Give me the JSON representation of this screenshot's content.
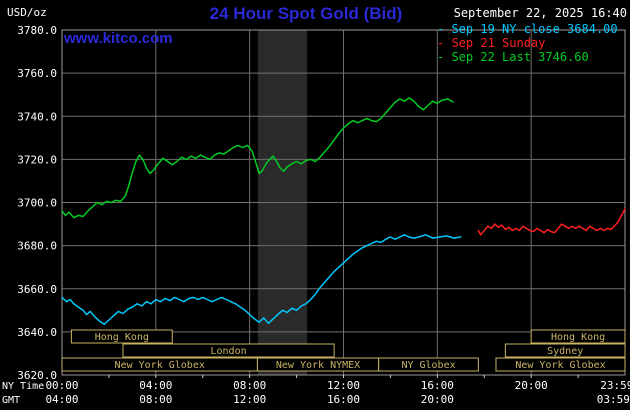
{
  "header": {
    "unit_label": "USD/oz",
    "title": "24 Hour Spot Gold (Bid)",
    "datetime": "September 22, 2025 16:40",
    "watermark": "www.kitco.com"
  },
  "legend": {
    "items": [
      {
        "marker": "-",
        "label": "Sep 19 NY close 3684.00",
        "color": "#00c8ff"
      },
      {
        "marker": "-",
        "label": "Sep 21 Sunday",
        "color": "#ff2020"
      },
      {
        "marker": "-",
        "label": "Sep 22 Last 3746.60",
        "color": "#00cc22"
      }
    ]
  },
  "chart_data": {
    "type": "line",
    "title": "24 Hour Spot Gold (Bid)",
    "ylabel": "USD/oz",
    "ylim": [
      3620,
      3780
    ],
    "x_hours_range": [
      0,
      24
    ],
    "grid": true,
    "grid_color": "#6f6f6f",
    "frame_color": "#9a9a9a",
    "session_color": "#c9b465",
    "y_gridlines": [
      3640,
      3660,
      3680,
      3700,
      3720,
      3740,
      3760
    ],
    "x_gridlines_hours": [
      4,
      8,
      12,
      16,
      20
    ],
    "y_tick_labels": [
      "3780.0",
      "3760.0",
      "3740.0",
      "3720.0",
      "3700.0",
      "3680.0",
      "3660.0",
      "3640.0",
      "3620.0"
    ],
    "x_axis_rows": [
      {
        "name": "NY Time",
        "ticks": [
          {
            "hour": 0,
            "label": "00:00"
          },
          {
            "hour": 4,
            "label": "04:00"
          },
          {
            "hour": 8,
            "label": "08:00"
          },
          {
            "hour": 12,
            "label": "12:00"
          },
          {
            "hour": 16,
            "label": "16:00"
          },
          {
            "hour": 20,
            "label": "20:00"
          },
          {
            "hour": 23.65,
            "label": "23:59"
          }
        ]
      },
      {
        "name": "GMT",
        "ticks": [
          {
            "hour": 0,
            "label": "04:00"
          },
          {
            "hour": 4,
            "label": "08:00"
          },
          {
            "hour": 8,
            "label": "12:00"
          },
          {
            "hour": 12,
            "label": "16:00"
          },
          {
            "hour": 16,
            "label": "20:00"
          },
          {
            "hour": 23.5,
            "label": "03:59"
          }
        ]
      }
    ],
    "shade_band": {
      "from_hour": 8.35,
      "to_hour": 10.45,
      "color": "#2a2a2a"
    },
    "sessions": [
      {
        "row": 0,
        "label": "Hong Kong",
        "from_hour": 0.4,
        "to_hour": 4.7
      },
      {
        "row": 0,
        "label": "Hong Kong",
        "from_hour": 20.0,
        "to_hour": 24.0
      },
      {
        "row": 1,
        "label": "London",
        "from_hour": 2.6,
        "to_hour": 11.6
      },
      {
        "row": 1,
        "label": "Sydney",
        "from_hour": 18.9,
        "to_hour": 24.0
      },
      {
        "row": 2,
        "label": "New York Globex",
        "from_hour": 0.0,
        "to_hour": 8.33
      },
      {
        "row": 2,
        "label": "New York NYMEX",
        "from_hour": 8.33,
        "to_hour": 13.5
      },
      {
        "row": 2,
        "label": "NY Globex",
        "from_hour": 13.5,
        "to_hour": 17.75
      },
      {
        "row": 2,
        "label": "New York Globex",
        "from_hour": 18.5,
        "to_hour": 24.0
      }
    ],
    "series": [
      {
        "key": "sep19",
        "name": "Sep 19 NY close 3684.00",
        "color": "#00c8ff",
        "points": [
          [
            0,
            3656
          ],
          [
            0.2,
            3654
          ],
          [
            0.35,
            3655
          ],
          [
            0.5,
            3653
          ],
          [
            0.7,
            3651.5
          ],
          [
            0.9,
            3650
          ],
          [
            1.05,
            3648
          ],
          [
            1.2,
            3649.5
          ],
          [
            1.4,
            3647
          ],
          [
            1.6,
            3645
          ],
          [
            1.8,
            3643.5
          ],
          [
            2.0,
            3645.5
          ],
          [
            2.2,
            3647.5
          ],
          [
            2.4,
            3649.5
          ],
          [
            2.6,
            3648.5
          ],
          [
            2.8,
            3650.5
          ],
          [
            3.0,
            3651.5
          ],
          [
            3.2,
            3653
          ],
          [
            3.4,
            3652
          ],
          [
            3.6,
            3654
          ],
          [
            3.8,
            3653
          ],
          [
            4.0,
            3655
          ],
          [
            4.2,
            3654
          ],
          [
            4.4,
            3655.5
          ],
          [
            4.6,
            3654.5
          ],
          [
            4.8,
            3656
          ],
          [
            5.0,
            3655
          ],
          [
            5.2,
            3654
          ],
          [
            5.4,
            3655.5
          ],
          [
            5.6,
            3656
          ],
          [
            5.8,
            3655
          ],
          [
            6.0,
            3656
          ],
          [
            6.2,
            3655
          ],
          [
            6.4,
            3654
          ],
          [
            6.6,
            3655
          ],
          [
            6.8,
            3656
          ],
          [
            7.0,
            3655
          ],
          [
            7.2,
            3654
          ],
          [
            7.4,
            3653
          ],
          [
            7.6,
            3651.5
          ],
          [
            7.8,
            3650
          ],
          [
            8.0,
            3648
          ],
          [
            8.2,
            3646
          ],
          [
            8.4,
            3644.5
          ],
          [
            8.6,
            3646.5
          ],
          [
            8.8,
            3644
          ],
          [
            9.0,
            3646
          ],
          [
            9.2,
            3648
          ],
          [
            9.4,
            3650
          ],
          [
            9.6,
            3649
          ],
          [
            9.8,
            3651
          ],
          [
            10.0,
            3650
          ],
          [
            10.2,
            3652
          ],
          [
            10.4,
            3653
          ],
          [
            10.6,
            3655
          ],
          [
            10.8,
            3657.5
          ],
          [
            11.0,
            3660.5
          ],
          [
            11.2,
            3663
          ],
          [
            11.4,
            3665.5
          ],
          [
            11.6,
            3668
          ],
          [
            11.8,
            3670
          ],
          [
            12.0,
            3672
          ],
          [
            12.2,
            3674
          ],
          [
            12.4,
            3676
          ],
          [
            12.6,
            3677.5
          ],
          [
            12.8,
            3679
          ],
          [
            13.0,
            3680
          ],
          [
            13.2,
            3681
          ],
          [
            13.4,
            3682
          ],
          [
            13.6,
            3681.5
          ],
          [
            13.8,
            3683
          ],
          [
            14.0,
            3684
          ],
          [
            14.2,
            3683
          ],
          [
            14.4,
            3684
          ],
          [
            14.6,
            3685
          ],
          [
            14.8,
            3684
          ],
          [
            15.0,
            3683.5
          ],
          [
            15.2,
            3684
          ],
          [
            15.5,
            3685
          ],
          [
            15.8,
            3683.5
          ],
          [
            16.1,
            3684
          ],
          [
            16.4,
            3684.5
          ],
          [
            16.7,
            3683.5
          ],
          [
            17.0,
            3684
          ]
        ]
      },
      {
        "key": "sep21",
        "name": "Sep 21 Sunday",
        "color": "#ff2020",
        "points": [
          [
            17.75,
            3687
          ],
          [
            17.85,
            3685
          ],
          [
            18.0,
            3687
          ],
          [
            18.15,
            3689
          ],
          [
            18.3,
            3688
          ],
          [
            18.45,
            3690
          ],
          [
            18.6,
            3688.5
          ],
          [
            18.75,
            3689.5
          ],
          [
            18.9,
            3687.5
          ],
          [
            19.05,
            3688.5
          ],
          [
            19.2,
            3687
          ],
          [
            19.35,
            3688
          ],
          [
            19.5,
            3687
          ],
          [
            19.65,
            3689
          ],
          [
            19.8,
            3688
          ],
          [
            19.95,
            3687
          ],
          [
            20.1,
            3686.5
          ],
          [
            20.25,
            3688
          ],
          [
            20.4,
            3687
          ],
          [
            20.55,
            3686
          ],
          [
            20.7,
            3687.5
          ],
          [
            20.85,
            3686.5
          ],
          [
            21.0,
            3686
          ],
          [
            21.15,
            3688
          ],
          [
            21.3,
            3690
          ],
          [
            21.45,
            3689
          ],
          [
            21.6,
            3688
          ],
          [
            21.75,
            3689
          ],
          [
            21.9,
            3688
          ],
          [
            22.05,
            3689
          ],
          [
            22.2,
            3688
          ],
          [
            22.35,
            3687
          ],
          [
            22.5,
            3689
          ],
          [
            22.65,
            3688
          ],
          [
            22.8,
            3687
          ],
          [
            22.95,
            3688
          ],
          [
            23.1,
            3687
          ],
          [
            23.25,
            3688
          ],
          [
            23.4,
            3687.5
          ],
          [
            23.55,
            3689
          ],
          [
            23.7,
            3691
          ],
          [
            23.85,
            3694
          ],
          [
            24,
            3697
          ]
        ]
      },
      {
        "key": "sep22",
        "name": "Sep 22 Last 3746.60",
        "color": "#00cc22",
        "points": [
          [
            0,
            3696
          ],
          [
            0.15,
            3694
          ],
          [
            0.3,
            3695.5
          ],
          [
            0.5,
            3693
          ],
          [
            0.7,
            3694
          ],
          [
            0.9,
            3693.5
          ],
          [
            1.1,
            3696
          ],
          [
            1.3,
            3698
          ],
          [
            1.5,
            3700
          ],
          [
            1.7,
            3699
          ],
          [
            1.9,
            3700.5
          ],
          [
            2.1,
            3700
          ],
          [
            2.3,
            3701
          ],
          [
            2.5,
            3700.5
          ],
          [
            2.7,
            3703
          ],
          [
            2.85,
            3708
          ],
          [
            3.0,
            3714
          ],
          [
            3.15,
            3719
          ],
          [
            3.3,
            3722
          ],
          [
            3.45,
            3720
          ],
          [
            3.6,
            3716
          ],
          [
            3.75,
            3713.5
          ],
          [
            3.9,
            3715
          ],
          [
            4.1,
            3718
          ],
          [
            4.3,
            3720.5
          ],
          [
            4.5,
            3719
          ],
          [
            4.7,
            3717.5
          ],
          [
            4.9,
            3719
          ],
          [
            5.1,
            3721
          ],
          [
            5.3,
            3720
          ],
          [
            5.5,
            3721.5
          ],
          [
            5.7,
            3720.5
          ],
          [
            5.9,
            3722
          ],
          [
            6.1,
            3721
          ],
          [
            6.3,
            3720
          ],
          [
            6.5,
            3722
          ],
          [
            6.7,
            3723
          ],
          [
            6.9,
            3722.5
          ],
          [
            7.1,
            3724
          ],
          [
            7.3,
            3725.5
          ],
          [
            7.5,
            3726.5
          ],
          [
            7.7,
            3725.5
          ],
          [
            7.9,
            3726.5
          ],
          [
            8.1,
            3724
          ],
          [
            8.25,
            3719
          ],
          [
            8.4,
            3713.5
          ],
          [
            8.55,
            3715
          ],
          [
            8.7,
            3718
          ],
          [
            8.85,
            3720
          ],
          [
            9.0,
            3721.5
          ],
          [
            9.15,
            3719
          ],
          [
            9.3,
            3716
          ],
          [
            9.45,
            3714.5
          ],
          [
            9.6,
            3716.5
          ],
          [
            9.8,
            3718
          ],
          [
            10.0,
            3719
          ],
          [
            10.2,
            3718
          ],
          [
            10.4,
            3719.5
          ],
          [
            10.6,
            3720
          ],
          [
            10.8,
            3719
          ],
          [
            11.0,
            3721
          ],
          [
            11.2,
            3723.5
          ],
          [
            11.4,
            3726
          ],
          [
            11.6,
            3729
          ],
          [
            11.8,
            3732
          ],
          [
            12.0,
            3734.5
          ],
          [
            12.2,
            3736.5
          ],
          [
            12.4,
            3738
          ],
          [
            12.6,
            3737
          ],
          [
            12.8,
            3738
          ],
          [
            13.0,
            3739
          ],
          [
            13.2,
            3738
          ],
          [
            13.4,
            3737.5
          ],
          [
            13.6,
            3739
          ],
          [
            13.8,
            3741.5
          ],
          [
            14.0,
            3744
          ],
          [
            14.2,
            3746.5
          ],
          [
            14.4,
            3748
          ],
          [
            14.6,
            3747
          ],
          [
            14.8,
            3748.5
          ],
          [
            15.0,
            3747
          ],
          [
            15.2,
            3744.5
          ],
          [
            15.4,
            3743
          ],
          [
            15.6,
            3745
          ],
          [
            15.8,
            3747
          ],
          [
            16.0,
            3746
          ],
          [
            16.2,
            3747.5
          ],
          [
            16.45,
            3748
          ],
          [
            16.67,
            3746.6
          ]
        ]
      }
    ]
  }
}
